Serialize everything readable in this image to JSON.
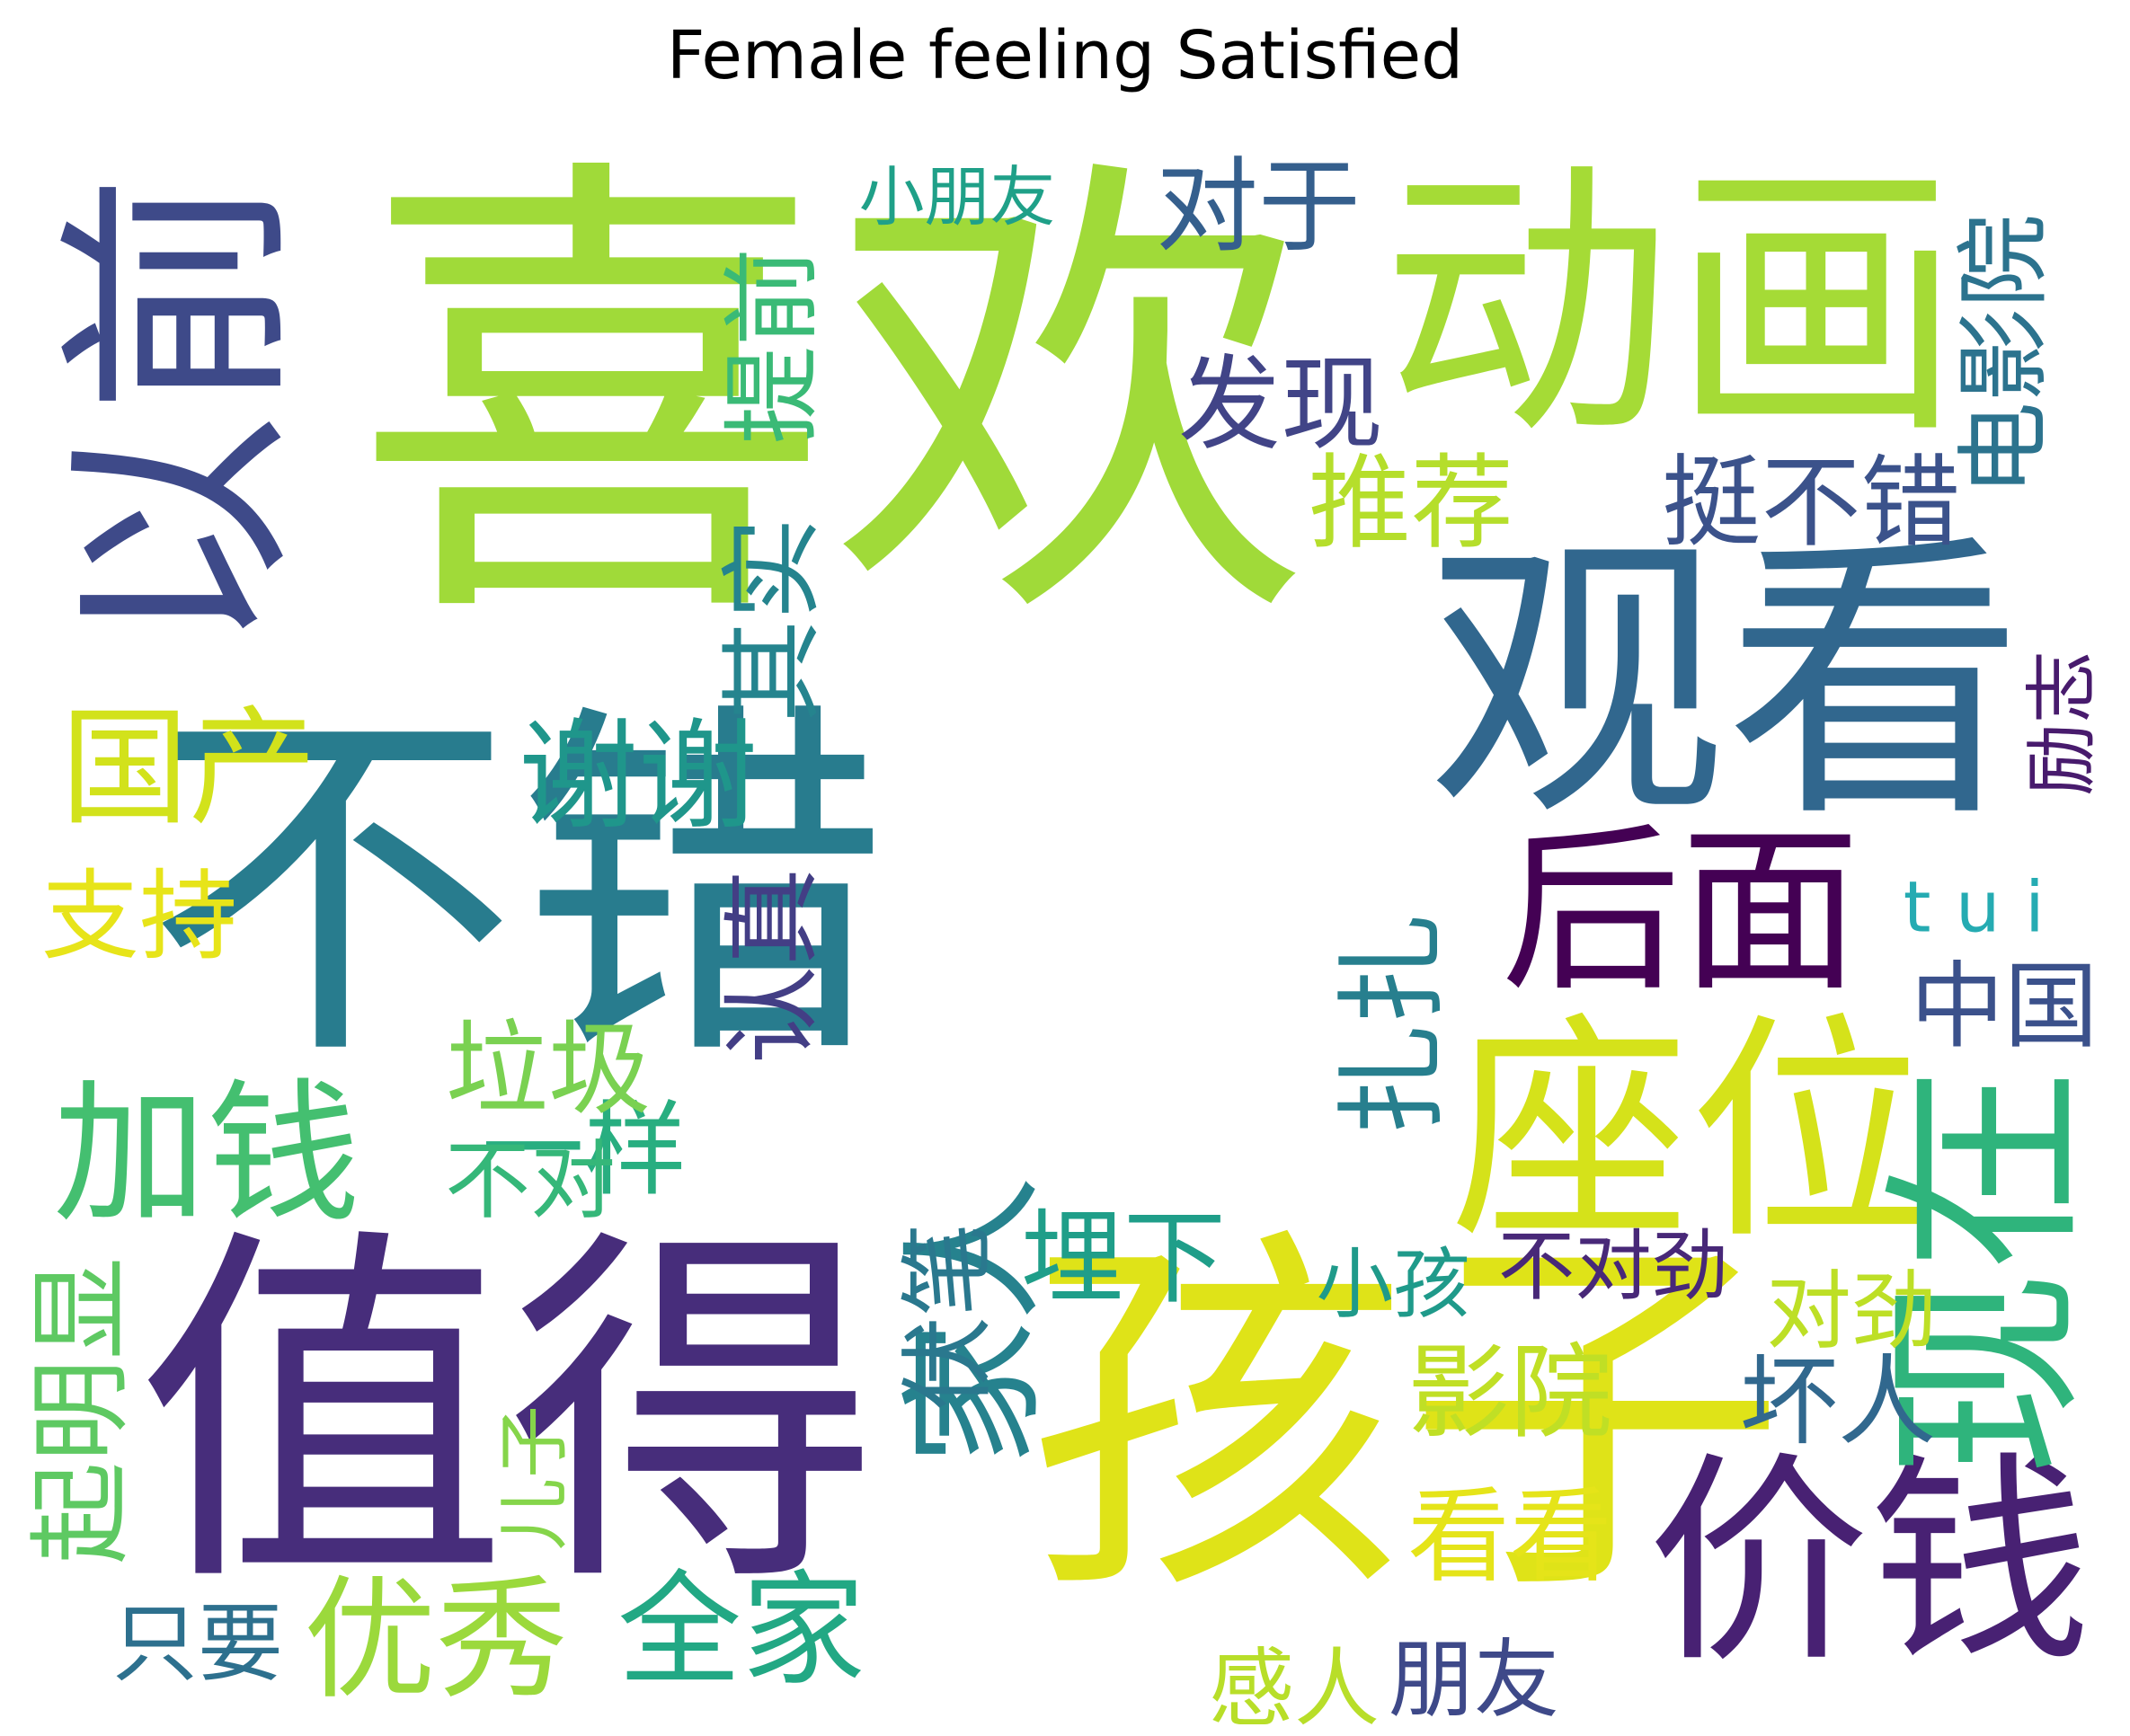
{
  "chart_data": {
    "type": "wordcloud",
    "title": "Female feeling Satisfied",
    "words": [
      {
        "text": "不错",
        "weight": 100,
        "color": "#287c8e",
        "orientation": "horizontal"
      },
      {
        "text": "喜欢",
        "weight": 76,
        "color": "#a0da39",
        "orientation": "horizontal"
      },
      {
        "text": "值得",
        "weight": 52,
        "color": "#472d7b",
        "orientation": "horizontal"
      },
      {
        "text": "孩子",
        "weight": 51,
        "color": "#dfe318",
        "orientation": "horizontal"
      },
      {
        "text": "观看",
        "weight": 40,
        "color": "#31678e",
        "orientation": "horizontal"
      },
      {
        "text": "动画",
        "weight": 37,
        "color": "#a5db36",
        "orientation": "horizontal"
      },
      {
        "text": "以前",
        "weight": 30,
        "color": "#3e4a89",
        "orientation": "vertical"
      },
      {
        "text": "座位",
        "weight": 28,
        "color": "#d5e21a",
        "orientation": "horizontal"
      },
      {
        "text": "价钱",
        "weight": 27,
        "color": "#482173",
        "orientation": "horizontal"
      },
      {
        "text": "现在",
        "weight": 24,
        "color": "#2fb47c",
        "orientation": "vertical"
      },
      {
        "text": "加钱",
        "weight": 22,
        "color": "#44bf70",
        "orientation": "horizontal"
      },
      {
        "text": "后面",
        "weight": 21,
        "color": "#440154",
        "orientation": "horizontal"
      },
      {
        "text": "一样",
        "weight": 20,
        "color": "#28ae80",
        "orientation": "horizontal"
      },
      {
        "text": "家人",
        "weight": 17,
        "color": "#26828e",
        "orientation": "vertical"
      },
      {
        "text": "起明显",
        "weight": 16,
        "color": "#5ec962",
        "orientation": "vertical"
      },
      {
        "text": "优秀",
        "weight": 16,
        "color": "#9bd93c",
        "orientation": "horizontal"
      },
      {
        "text": "国产",
        "weight": 15,
        "color": "#d2e21b",
        "orientation": "horizontal"
      },
      {
        "text": "扎扎",
        "weight": 15,
        "color": "#277f8e",
        "orientation": "vertical"
      },
      {
        "text": "全家",
        "weight": 14,
        "color": "#22a884",
        "orientation": "horizontal"
      },
      {
        "text": "谢谢",
        "weight": 14,
        "color": "#1f968b",
        "orientation": "horizontal"
      },
      {
        "text": "其实",
        "weight": 13,
        "color": "#25848e",
        "orientation": "vertical"
      },
      {
        "text": "提前",
        "weight": 13,
        "color": "#3aba76",
        "orientation": "vertical"
      },
      {
        "text": "电影院",
        "weight": 12,
        "color": "#2c738e",
        "orientation": "vertical"
      },
      {
        "text": "tui",
        "weight": 11,
        "color": "#25abb2",
        "orientation": "horizontal"
      },
      {
        "text": "挺不错",
        "weight": 11,
        "color": "#3b528b",
        "orientation": "horizontal"
      },
      {
        "text": "推荐",
        "weight": 11,
        "color": "#b5de2b",
        "orientation": "horizontal"
      },
      {
        "text": "发现",
        "weight": 11,
        "color": "#414487",
        "orientation": "horizontal"
      },
      {
        "text": "对于",
        "weight": 11,
        "color": "#355f8d",
        "orientation": "horizontal"
      },
      {
        "text": "垃圾",
        "weight": 11,
        "color": "#7ad151",
        "orientation": "horizontal"
      },
      {
        "text": "中国",
        "weight": 10,
        "color": "#3b518b",
        "orientation": "horizontal"
      },
      {
        "text": "支持",
        "weight": 10,
        "color": "#e7e419",
        "orientation": "horizontal"
      },
      {
        "text": "影院",
        "weight": 10,
        "color": "#c0df25",
        "orientation": "horizontal"
      },
      {
        "text": "认真",
        "weight": 10,
        "color": "#433e85",
        "orientation": "vertical"
      },
      {
        "text": "埋下",
        "weight": 10,
        "color": "#1f9e89",
        "orientation": "horizontal"
      },
      {
        "text": "伏笔",
        "weight": 9,
        "color": "#2a788e",
        "orientation": "vertical"
      },
      {
        "text": "不对",
        "weight": 9,
        "color": "#35b779",
        "orientation": "horizontal"
      },
      {
        "text": "看看",
        "weight": 9,
        "color": "#e5e419",
        "orientation": "horizontal"
      },
      {
        "text": "坏人",
        "weight": 9,
        "color": "#31688e",
        "orientation": "horizontal"
      },
      {
        "text": "小朋友",
        "weight": 9,
        "color": "#1fa088",
        "orientation": "horizontal"
      },
      {
        "text": "不对劲",
        "weight": 8,
        "color": "#482878",
        "orientation": "horizontal"
      },
      {
        "text": "小孩",
        "weight": 8,
        "color": "#1f9a8a",
        "orientation": "horizontal"
      },
      {
        "text": "对劲",
        "weight": 8,
        "color": "#bddf26",
        "orientation": "horizontal"
      },
      {
        "text": "只要",
        "weight": 8,
        "color": "#2d708e",
        "orientation": "horizontal"
      },
      {
        "text": "朋友",
        "weight": 7,
        "color": "#3e4989",
        "orientation": "horizontal"
      },
      {
        "text": "感人",
        "weight": 7,
        "color": "#b8de29",
        "orientation": "horizontal"
      },
      {
        "text": "儿子",
        "weight": 7,
        "color": "#85d54a",
        "orientation": "vertical"
      },
      {
        "text": "励志",
        "weight": 7,
        "color": "#481b6d",
        "orientation": "vertical"
      }
    ]
  }
}
